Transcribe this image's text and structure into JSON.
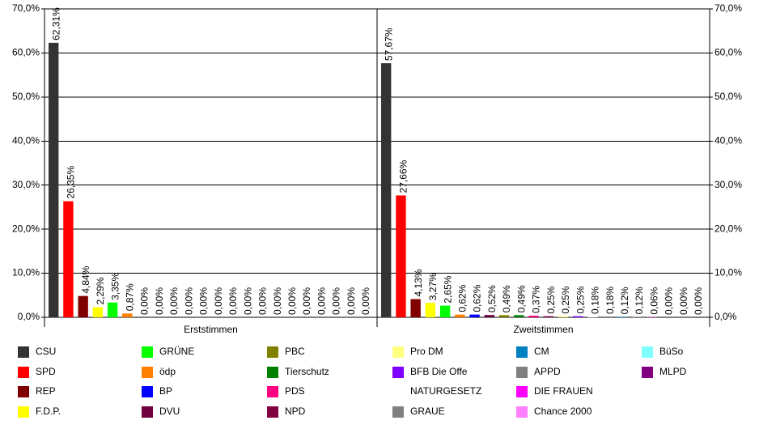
{
  "chart_data": {
    "type": "bar",
    "categories": [
      "Erststimmen",
      "Zweitstimmen"
    ],
    "ylim": [
      0,
      70
    ],
    "yticks": [
      {
        "value": 0,
        "label": "0,0%"
      },
      {
        "value": 10,
        "label": "10,0%"
      },
      {
        "value": 20,
        "label": "20,0%"
      },
      {
        "value": 30,
        "label": "30,0%"
      },
      {
        "value": 40,
        "label": "40,0%"
      },
      {
        "value": 50,
        "label": "50,0%"
      },
      {
        "value": 60,
        "label": "60,0%"
      },
      {
        "value": 70,
        "label": "70,0%"
      }
    ],
    "y2lim": [
      0,
      70
    ],
    "y2ticks": [
      {
        "value": 0,
        "label": "0,0%"
      },
      {
        "value": 10,
        "label": "10,0%"
      },
      {
        "value": 20,
        "label": "20,0%"
      },
      {
        "value": 30,
        "label": "30,0%"
      },
      {
        "value": 40,
        "label": "40,0%"
      },
      {
        "value": 50,
        "label": "50,0%"
      },
      {
        "value": 60,
        "label": "60,0%"
      },
      {
        "value": 70,
        "label": "70,0%"
      }
    ],
    "grid": true,
    "legend": "bottom",
    "series": [
      {
        "name": "CSU",
        "color": "#333333",
        "values": [
          62.31,
          57.67
        ],
        "value_labels": [
          "62,31%",
          "57,67%"
        ]
      },
      {
        "name": "SPD",
        "color": "#ff0000",
        "values": [
          26.35,
          27.66
        ],
        "value_labels": [
          "26,35%",
          "27,66%"
        ]
      },
      {
        "name": "REP",
        "color": "#800000",
        "values": [
          4.84,
          4.13
        ],
        "value_labels": [
          "4,84%",
          "4,13%"
        ]
      },
      {
        "name": "F.D.P.",
        "color": "#ffff00",
        "values": [
          2.29,
          3.27
        ],
        "value_labels": [
          "2,29%",
          "3,27%"
        ]
      },
      {
        "name": "GRÜNE",
        "color": "#00ff00",
        "values": [
          3.35,
          2.65
        ],
        "value_labels": [
          "3,35%",
          "2,65%"
        ]
      },
      {
        "name": "ödp",
        "color": "#ff8000",
        "values": [
          0.87,
          0.62
        ],
        "value_labels": [
          "0,87%",
          "0,62%"
        ]
      },
      {
        "name": "BP",
        "color": "#0000ff",
        "values": [
          0,
          0.62
        ],
        "value_labels": [
          "0,00%",
          "0,62%"
        ]
      },
      {
        "name": "DVU",
        "color": "#700040",
        "values": [
          0,
          0.52
        ],
        "value_labels": [
          "0,00%",
          "0,52%"
        ]
      },
      {
        "name": "PBC",
        "color": "#808000",
        "values": [
          0,
          0.49
        ],
        "value_labels": [
          "0,00%",
          "0,49%"
        ]
      },
      {
        "name": "Tierschutz",
        "color": "#008000",
        "values": [
          0,
          0.49
        ],
        "value_labels": [
          "0,00%",
          "0,49%"
        ]
      },
      {
        "name": "PDS",
        "color": "#ff0080",
        "values": [
          0,
          0.37
        ],
        "value_labels": [
          "0,00%",
          "0,37%"
        ]
      },
      {
        "name": "NPD",
        "color": "#800040",
        "values": [
          0,
          0.25
        ],
        "value_labels": [
          "0,00%",
          "0,25%"
        ]
      },
      {
        "name": "Pro DM",
        "color": "#ffff80",
        "values": [
          0,
          0.25
        ],
        "value_labels": [
          "0,00%",
          "0,25%"
        ]
      },
      {
        "name": "BFB Die Offe",
        "color": "#8000ff",
        "values": [
          0,
          0.25
        ],
        "value_labels": [
          "0,00%",
          "0,25%"
        ]
      },
      {
        "name": "NATURGESETZ",
        "color": "#ffffff",
        "values": [
          0,
          0.18
        ],
        "value_labels": [
          "0,00%",
          "0,18%"
        ]
      },
      {
        "name": "GRAUE",
        "color": "#808080",
        "values": [
          0,
          0.18
        ],
        "value_labels": [
          "0,00%",
          "0,18%"
        ]
      },
      {
        "name": "CM",
        "color": "#0080c0",
        "values": [
          0,
          0.12
        ],
        "value_labels": [
          "0,00%",
          "0,12%"
        ]
      },
      {
        "name": "APPD",
        "color": "#808080",
        "values": [
          0,
          0.12
        ],
        "value_labels": [
          "0,00%",
          "0,12%"
        ]
      },
      {
        "name": "DIE FRAUEN",
        "color": "#ff00ff",
        "values": [
          0,
          0.06
        ],
        "value_labels": [
          "0,00%",
          "0,06%"
        ]
      },
      {
        "name": "Chance 2000",
        "color": "#ff80ff",
        "values": [
          0,
          0
        ],
        "value_labels": [
          "0,00%",
          "0,00%"
        ]
      },
      {
        "name": "BüSo",
        "color": "#80ffff",
        "values": [
          0,
          0
        ],
        "value_labels": [
          "0,00%",
          "0,00%"
        ]
      },
      {
        "name": "MLPD",
        "color": "#800080",
        "values": [
          0,
          0
        ],
        "value_labels": [
          "0,00%",
          "0,00%"
        ]
      }
    ]
  }
}
